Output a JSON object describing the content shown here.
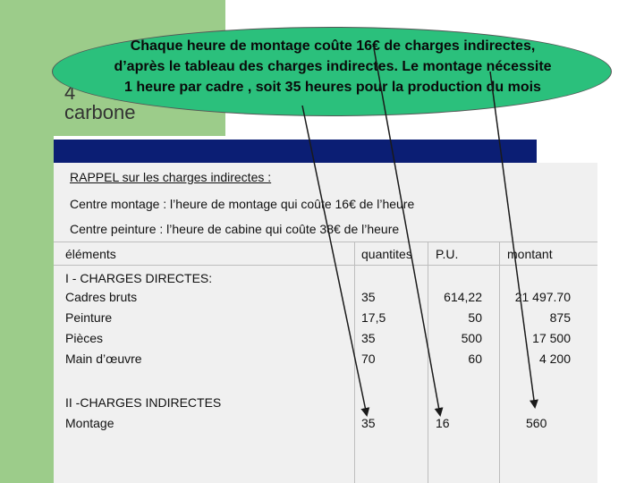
{
  "title_partial": {
    "line1": "4",
    "line2": "carbone"
  },
  "callout": {
    "lines": [
      "Chaque heure de montage coûte 16€ de charges indirectes,",
      "d’après le tableau des charges indirectes. Le montage nécessite",
      "1 heure par cadre , soit 35 heures pour la production du mois"
    ]
  },
  "rappel": {
    "title": "RAPPEL sur les charges indirectes :",
    "lines": [
      "Centre montage : l’heure de montage qui coûte 16€ de l’heure",
      "Centre peinture : l’heure de cabine qui coûte 38€ de l’heure"
    ]
  },
  "table": {
    "headers": {
      "elements": "éléments",
      "quantites": "quantites",
      "pu": "P.U.",
      "montant": "montant"
    },
    "section_direct": "I - CHARGES DIRECTES:",
    "direct_rows": [
      {
        "label": "Cadres bruts",
        "qty": "35",
        "pu": "614,22",
        "montant": "21 497.70"
      },
      {
        "label": "Peinture",
        "qty": "17,5",
        "pu": "50",
        "montant": "875"
      },
      {
        "label": "Pièces",
        "qty": "35",
        "pu": "500",
        "montant": "17 500"
      },
      {
        "label": "Main d’œuvre",
        "qty": "70",
        "pu": "60",
        "montant": "4 200"
      }
    ],
    "section_indirect": "II -CHARGES INDIRECTES",
    "indirect_rows": [
      {
        "label": "Montage",
        "qty": "35",
        "pu": "16",
        "montant": "560"
      }
    ]
  },
  "colors": {
    "accent_green": "#9ccc8a",
    "callout": "#2bc07c",
    "navy": "#0b1e74"
  }
}
